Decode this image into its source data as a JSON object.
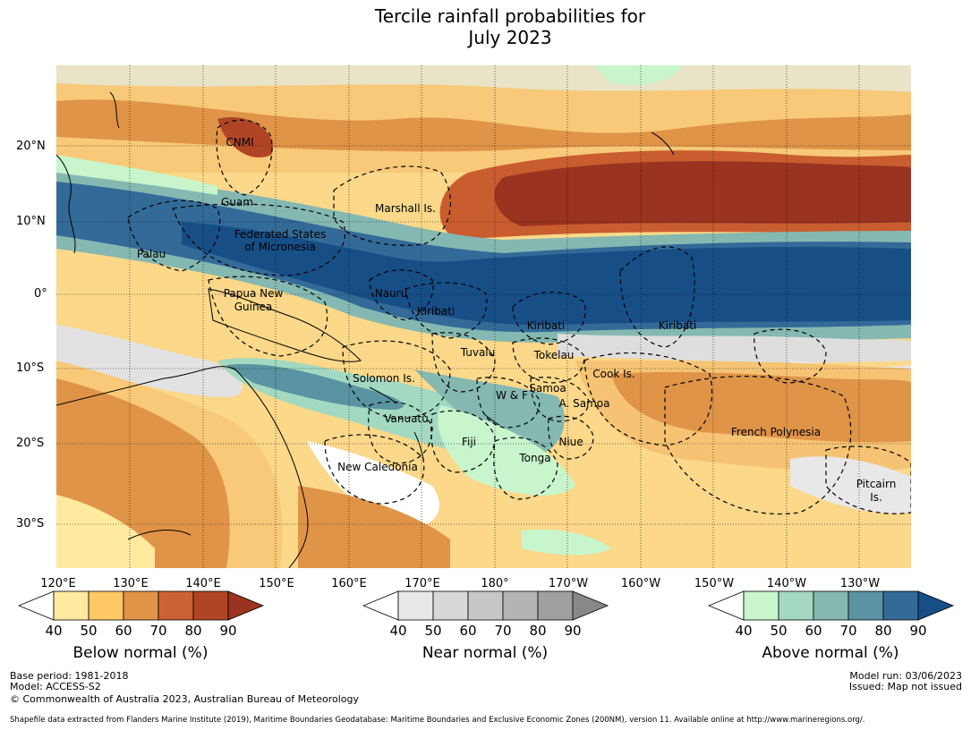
{
  "title": {
    "line1": "Tercile rainfall probabilities for",
    "line2": "July 2023"
  },
  "map": {
    "lat_labels": [
      "20°N",
      "10°N",
      "0°",
      "10°S",
      "20°S",
      "30°S"
    ],
    "lon_labels": [
      "120°E",
      "130°E",
      "140°E",
      "150°E",
      "160°E",
      "170°E",
      "180°",
      "170°W",
      "160°W",
      "150°W",
      "140°W",
      "130°W"
    ],
    "regions": [
      "CNMI",
      "Guam",
      "Marshall Is.",
      "Palau",
      "Federated States",
      "of Micronesia",
      "Papua New",
      "Guinea",
      "Nauru",
      "Kiribati",
      "Kiribati",
      "Kiribati",
      "Tuvalu",
      "Tokelau",
      "Cook Is.",
      "Solomon Is.",
      "W & F",
      "Samoa",
      "A. Samoa",
      "Vanuatu",
      "Fiji",
      "Niue",
      "Tonga",
      "French Polynesia",
      "New Caledonia",
      "Pitcairn",
      "Is."
    ]
  },
  "colorbars": [
    {
      "title": "Below normal (%)",
      "ticks": [
        "40",
        "50",
        "60",
        "70",
        "80",
        "90"
      ],
      "colors": [
        "#ffeaa0",
        "#fdc865",
        "#e09448",
        "#cc6233",
        "#b04526",
        "#9a3320"
      ]
    },
    {
      "title": "Near normal (%)",
      "ticks": [
        "40",
        "50",
        "60",
        "70",
        "80",
        "90"
      ],
      "colors": [
        "#e8e8e8",
        "#d8d8d8",
        "#c7c7c7",
        "#b4b4b4",
        "#a0a0a0",
        "#888888"
      ]
    },
    {
      "title": "Above normal (%)",
      "ticks": [
        "40",
        "50",
        "60",
        "70",
        "80",
        "90"
      ],
      "colors": [
        "#c8f5cc",
        "#a3d9c0",
        "#85b8b1",
        "#5a93a1",
        "#336a98",
        "#174e86"
      ]
    }
  ],
  "footer": {
    "base_period": "Base period: 1981-2018",
    "model": "Model: ACCESS-S2",
    "copyright": "© Commonwealth of Australia 2023, Australian Bureau of Meteorology",
    "model_run": "Model run: 03/06/2023",
    "issued": "Issued: Map not issued",
    "shapefile": "Shapefile data extracted from Flanders Marine Institute (2019), Maritime Boundaries Geodatabase: Maritime Boundaries and Exclusive Economic Zones (200NM), version 11. Available online at http://www.marineregions.org/."
  }
}
